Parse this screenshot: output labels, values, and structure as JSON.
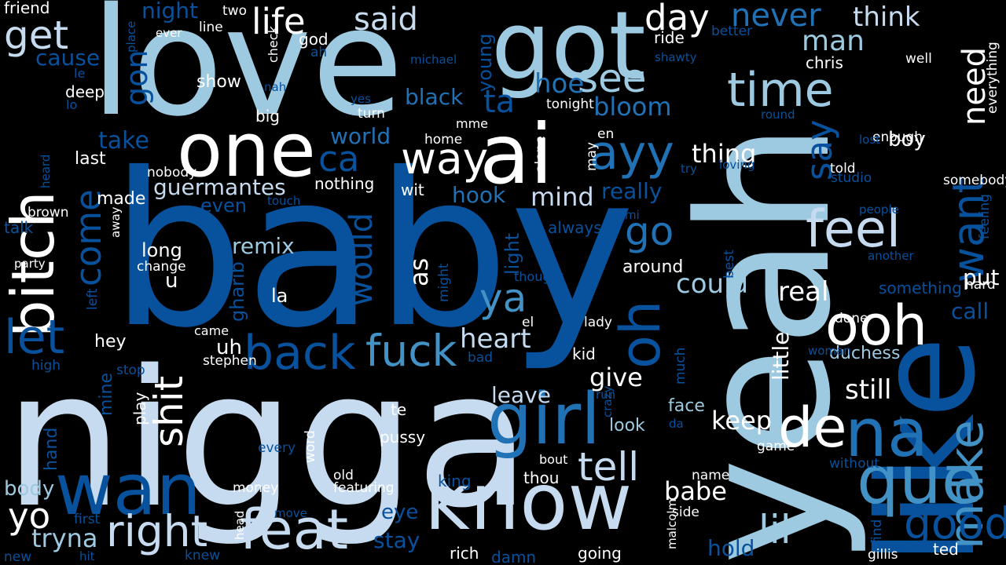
{
  "palette": {
    "background": "#000000",
    "white": "#ffffff",
    "ice": "#e3ecf7",
    "pale": "#c6dbef",
    "light": "#9ecae1",
    "sky": "#6baed6",
    "mid": "#4292c6",
    "deep": "#2171b5",
    "navy": "#08519c",
    "dark": "#08306b"
  },
  "words": [
    {
      "text": "baby",
      "color": "navy"
    },
    {
      "text": "nigga",
      "color": "pale"
    },
    {
      "text": "yeah",
      "color": "light"
    },
    {
      "text": "love",
      "color": "light"
    },
    {
      "text": "like",
      "color": "navy"
    },
    {
      "text": "got",
      "color": "light"
    },
    {
      "text": "ai",
      "color": "white"
    },
    {
      "text": "one",
      "color": "white"
    },
    {
      "text": "know",
      "color": "pale"
    },
    {
      "text": "girl",
      "color": "deep"
    },
    {
      "text": "bitch",
      "color": "white"
    },
    {
      "text": "que",
      "color": "mid"
    },
    {
      "text": "wan",
      "color": "navy"
    },
    {
      "text": "feat",
      "color": "pale"
    },
    {
      "text": "na",
      "color": "deep"
    },
    {
      "text": "de",
      "color": "white"
    },
    {
      "text": "oh",
      "color": "navy"
    },
    {
      "text": "make",
      "color": "mid"
    },
    {
      "text": "want",
      "color": "navy"
    },
    {
      "text": "feel",
      "color": "pale"
    },
    {
      "text": "ooh",
      "color": "white"
    },
    {
      "text": "back",
      "color": "navy"
    },
    {
      "text": "fuck",
      "color": "mid"
    },
    {
      "text": "right",
      "color": "pale"
    },
    {
      "text": "way",
      "color": "white"
    },
    {
      "text": "ayy",
      "color": "deep"
    },
    {
      "text": "time",
      "color": "light"
    },
    {
      "text": "see",
      "color": "light"
    },
    {
      "text": "get",
      "color": "pale"
    },
    {
      "text": "yo",
      "color": "white"
    },
    {
      "text": "let",
      "color": "navy"
    },
    {
      "text": "ya",
      "color": "mid"
    },
    {
      "text": "go",
      "color": "deep"
    },
    {
      "text": "lil",
      "color": "light"
    },
    {
      "text": "good",
      "color": "navy"
    },
    {
      "text": "tell",
      "color": "pale"
    },
    {
      "text": "shit",
      "color": "white"
    },
    {
      "text": "life",
      "color": "white"
    },
    {
      "text": "said",
      "color": "pale"
    },
    {
      "text": "day",
      "color": "white"
    },
    {
      "text": "never",
      "color": "deep"
    },
    {
      "text": "think",
      "color": "pale"
    },
    {
      "text": "need",
      "color": "white"
    },
    {
      "text": "man",
      "color": "light"
    },
    {
      "text": "ca",
      "color": "navy"
    },
    {
      "text": "ta",
      "color": "navy"
    },
    {
      "text": "say",
      "color": "navy"
    },
    {
      "text": "come",
      "color": "navy"
    },
    {
      "text": "would",
      "color": "navy"
    },
    {
      "text": "real",
      "color": "white"
    },
    {
      "text": "could",
      "color": "light"
    },
    {
      "text": "heart",
      "color": "pale"
    },
    {
      "text": "give",
      "color": "white"
    },
    {
      "text": "keep",
      "color": "white"
    },
    {
      "text": "still",
      "color": "white"
    },
    {
      "text": "babe",
      "color": "white"
    },
    {
      "text": "tryna",
      "color": "light"
    },
    {
      "text": "thing",
      "color": "white"
    },
    {
      "text": "mind",
      "color": "pale"
    },
    {
      "text": "hook",
      "color": "deep"
    },
    {
      "text": "bloom",
      "color": "deep"
    },
    {
      "text": "hoe",
      "color": "deep"
    },
    {
      "text": "black",
      "color": "deep"
    },
    {
      "text": "world",
      "color": "deep"
    },
    {
      "text": "guermantes",
      "color": "pale"
    },
    {
      "text": "remix",
      "color": "light"
    },
    {
      "text": "take",
      "color": "navy"
    },
    {
      "text": "gon",
      "color": "navy"
    },
    {
      "text": "cause",
      "color": "navy"
    },
    {
      "text": "night",
      "color": "navy"
    },
    {
      "text": "really",
      "color": "navy"
    },
    {
      "text": "as",
      "color": "white"
    },
    {
      "text": "leave",
      "color": "pale"
    },
    {
      "text": "put",
      "color": "white"
    },
    {
      "text": "call",
      "color": "navy"
    },
    {
      "text": "hold",
      "color": "navy"
    },
    {
      "text": "stay",
      "color": "navy"
    },
    {
      "text": "eye",
      "color": "navy"
    },
    {
      "text": "boy",
      "color": "white"
    },
    {
      "text": "around",
      "color": "white"
    },
    {
      "text": "little",
      "color": "white"
    },
    {
      "text": "duchess",
      "color": "light"
    },
    {
      "text": "body",
      "color": "light"
    },
    {
      "text": "uh",
      "color": "white"
    },
    {
      "text": "u",
      "color": "white"
    },
    {
      "text": "la",
      "color": "white"
    },
    {
      "text": "hey",
      "color": "white"
    },
    {
      "text": "look",
      "color": "light"
    },
    {
      "text": "face",
      "color": "light"
    },
    {
      "text": "show",
      "color": "white"
    },
    {
      "text": "big",
      "color": "white"
    },
    {
      "text": "deep",
      "color": "white"
    },
    {
      "text": "last",
      "color": "white"
    },
    {
      "text": "made",
      "color": "white"
    },
    {
      "text": "long",
      "color": "white"
    },
    {
      "text": "even",
      "color": "navy"
    },
    {
      "text": "talk",
      "color": "navy"
    },
    {
      "text": "light",
      "color": "navy"
    },
    {
      "text": "mine",
      "color": "navy"
    },
    {
      "text": "hand",
      "color": "navy"
    },
    {
      "text": "gharib",
      "color": "navy"
    },
    {
      "text": "young",
      "color": "navy"
    },
    {
      "text": "better",
      "color": "navy"
    },
    {
      "text": "friend",
      "color": "white"
    },
    {
      "text": "everything",
      "color": "white"
    },
    {
      "text": "feeling",
      "color": "navy"
    },
    {
      "text": "somebody",
      "color": "white"
    },
    {
      "text": "enough",
      "color": "white"
    },
    {
      "text": "told",
      "color": "white"
    },
    {
      "text": "chris",
      "color": "white"
    },
    {
      "text": "well",
      "color": "white"
    },
    {
      "text": "ride",
      "color": "white"
    },
    {
      "text": "god",
      "color": "white"
    },
    {
      "text": "two",
      "color": "white"
    },
    {
      "text": "ever",
      "color": "white"
    },
    {
      "text": "line",
      "color": "white"
    },
    {
      "text": "check",
      "color": "white"
    },
    {
      "text": "turn",
      "color": "white"
    },
    {
      "text": "home",
      "color": "white"
    },
    {
      "text": "mme",
      "color": "white"
    },
    {
      "text": "tonight",
      "color": "white"
    },
    {
      "text": "alone",
      "color": "white"
    },
    {
      "text": "nobody",
      "color": "white"
    },
    {
      "text": "nothing",
      "color": "white"
    },
    {
      "text": "wit",
      "color": "white"
    },
    {
      "text": "brown",
      "color": "white"
    },
    {
      "text": "away",
      "color": "white"
    },
    {
      "text": "party",
      "color": "white"
    },
    {
      "text": "change",
      "color": "white"
    },
    {
      "text": "came",
      "color": "white"
    },
    {
      "text": "stephen",
      "color": "white"
    },
    {
      "text": "el",
      "color": "white"
    },
    {
      "text": "lady",
      "color": "white"
    },
    {
      "text": "kid",
      "color": "white"
    },
    {
      "text": "done",
      "color": "white"
    },
    {
      "text": "play",
      "color": "white"
    },
    {
      "text": "te",
      "color": "white"
    },
    {
      "text": "pussy",
      "color": "white"
    },
    {
      "text": "word",
      "color": "white"
    },
    {
      "text": "old",
      "color": "white"
    },
    {
      "text": "featuring",
      "color": "white"
    },
    {
      "text": "money",
      "color": "white"
    },
    {
      "text": "bout",
      "color": "white"
    },
    {
      "text": "thou",
      "color": "white"
    },
    {
      "text": "game",
      "color": "white"
    },
    {
      "text": "name",
      "color": "white"
    },
    {
      "text": "side",
      "color": "white"
    },
    {
      "text": "rich",
      "color": "white"
    },
    {
      "text": "going",
      "color": "white"
    },
    {
      "text": "head",
      "color": "white"
    },
    {
      "text": "malcolm",
      "color": "white"
    },
    {
      "text": "gillis",
      "color": "white"
    },
    {
      "text": "ted",
      "color": "white"
    },
    {
      "text": "hard",
      "color": "white"
    },
    {
      "text": "thought",
      "color": "navy"
    },
    {
      "text": "may",
      "color": "white"
    },
    {
      "text": "en",
      "color": "white"
    },
    {
      "text": "much",
      "color": "navy"
    },
    {
      "text": "best",
      "color": "navy"
    },
    {
      "text": "something",
      "color": "navy"
    },
    {
      "text": "always",
      "color": "navy"
    },
    {
      "text": "might",
      "color": "navy"
    },
    {
      "text": "king",
      "color": "navy"
    },
    {
      "text": "every",
      "color": "navy"
    },
    {
      "text": "first",
      "color": "navy"
    },
    {
      "text": "hit",
      "color": "navy"
    },
    {
      "text": "new",
      "color": "navy"
    },
    {
      "text": "knew",
      "color": "navy"
    },
    {
      "text": "move",
      "color": "navy"
    },
    {
      "text": "damn",
      "color": "navy"
    },
    {
      "text": "find",
      "color": "navy"
    },
    {
      "text": "without",
      "color": "navy"
    },
    {
      "text": "bad",
      "color": "navy"
    },
    {
      "text": "stop",
      "color": "navy"
    },
    {
      "text": "high",
      "color": "navy"
    },
    {
      "text": "left",
      "color": "navy"
    },
    {
      "text": "crazy",
      "color": "navy"
    },
    {
      "text": "da",
      "color": "navy"
    },
    {
      "text": "run",
      "color": "navy"
    },
    {
      "text": "mi",
      "color": "navy"
    },
    {
      "text": "people",
      "color": "navy"
    },
    {
      "text": "another",
      "color": "navy"
    },
    {
      "text": "woman",
      "color": "navy"
    },
    {
      "text": "studio",
      "color": "navy"
    },
    {
      "text": "try",
      "color": "navy"
    },
    {
      "text": "loving",
      "color": "navy"
    },
    {
      "text": "round",
      "color": "navy"
    },
    {
      "text": "lost",
      "color": "navy"
    },
    {
      "text": "touch",
      "color": "navy"
    },
    {
      "text": "shawty",
      "color": "navy"
    },
    {
      "text": "michael",
      "color": "navy"
    },
    {
      "text": "nah",
      "color": "navy"
    },
    {
      "text": "yes",
      "color": "navy"
    },
    {
      "text": "ah",
      "color": "navy"
    },
    {
      "text": "le",
      "color": "navy"
    },
    {
      "text": "lo",
      "color": "navy"
    },
    {
      "text": "heard",
      "color": "navy"
    },
    {
      "text": "place",
      "color": "navy"
    },
    {
      "text": "wo",
      "color": "navy"
    },
    {
      "text": "x",
      "color": "white"
    }
  ]
}
